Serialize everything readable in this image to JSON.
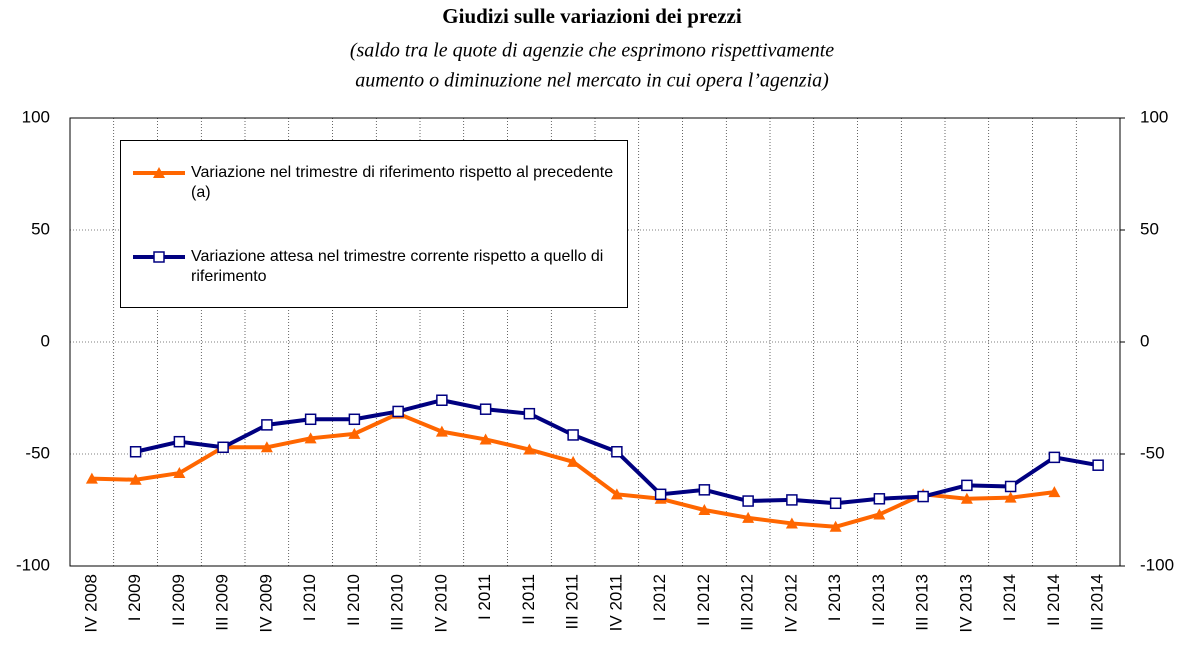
{
  "chart_data": {
    "type": "line",
    "title": "Giudizi sulle variazioni dei prezzi",
    "subtitle": [
      "(saldo tra le quote di agenzie che esprimono rispettivamente",
      "aumento o diminuzione nel mercato in cui opera l’agenzia)"
    ],
    "categories": [
      "IV 2008",
      "I 2009",
      "II 2009",
      "III 2009",
      "IV 2009",
      "I 2010",
      "II 2010",
      "III 2010",
      "IV 2010",
      "I 2011",
      "II 2011",
      "III 2011",
      "IV 2011",
      "I 2012",
      "II 2012",
      "III 2012",
      "IV 2012",
      "I 2013",
      "II 2013",
      "III 2013",
      "IV 2013",
      "I 2014",
      "II 2014",
      "III 2014"
    ],
    "series": [
      {
        "name": "Variazione nel trimestre di riferimento rispetto al precedente (a)",
        "color": "#ff6600",
        "marker": "triangle",
        "values": [
          -61,
          -61.5,
          -58.5,
          -47,
          -47,
          -43,
          -41,
          -32,
          -40,
          -43.5,
          -48,
          -53.5,
          -68,
          -70,
          -75,
          -78.5,
          -81,
          -82.5,
          -77,
          -68,
          -70,
          -69.5,
          -67,
          null
        ]
      },
      {
        "name": "Variazione attesa nel trimestre corrente rispetto a quello di riferimento",
        "color": "#000080",
        "marker": "square",
        "values": [
          null,
          -49,
          -44.5,
          -47,
          -37,
          -34.5,
          -34.5,
          -31,
          -26,
          -30,
          -32,
          -41.5,
          -49,
          -68,
          -66,
          -71,
          -70.5,
          -72,
          -70,
          -69,
          -64,
          -64.5,
          -51.5,
          -55
        ]
      }
    ],
    "ylim": [
      -100,
      100
    ],
    "yticks": [
      -100,
      -50,
      0,
      50,
      100
    ],
    "y2lim": [
      -100,
      100
    ],
    "y2ticks": [
      -100,
      -50,
      0,
      50,
      100
    ],
    "grid": true
  }
}
